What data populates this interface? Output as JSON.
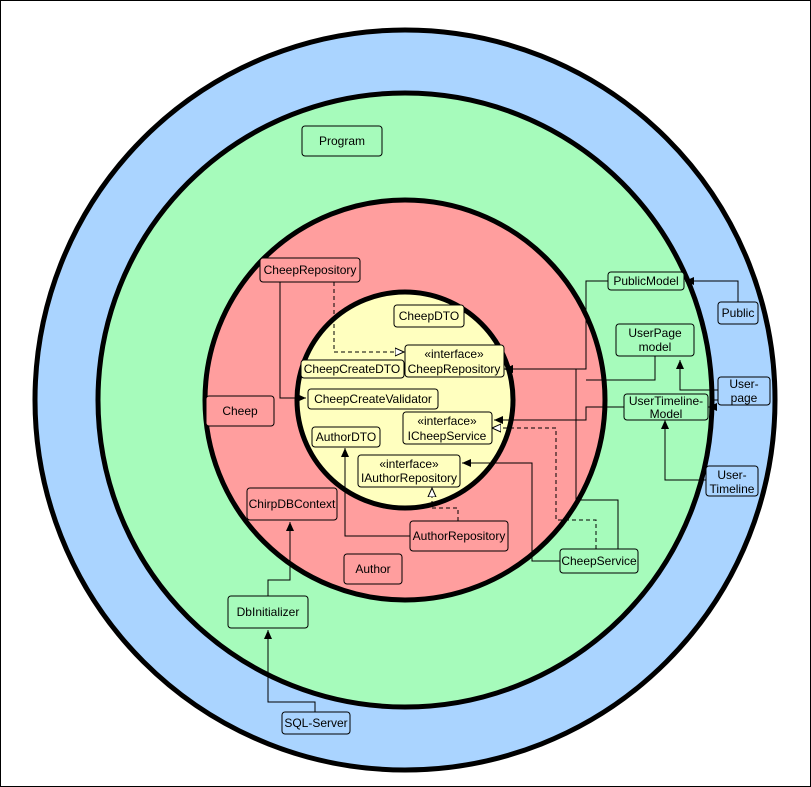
{
  "colors": {
    "outer_ring": "#aad4ff",
    "middle_ring": "#a6fbbb",
    "inner_ring": "#ff9e9e",
    "core": "#ffffbf",
    "stroke": "#000000"
  },
  "boxes": {
    "program": "Program",
    "cheep_repository": "CheepRepository",
    "cheep_dto": "CheepDTO",
    "icheep_repository_stereotype": "«interface»",
    "icheep_repository_name": "CheepRepository",
    "cheep_create_dto": "CheepCreateDTO",
    "cheep_create_validator": "CheepCreateValidator",
    "cheep": "Cheep",
    "author_dto": "AuthorDTO",
    "icheep_service_stereotype": "«interface»",
    "icheep_service_name": "ICheepService",
    "iauthor_repository_stereotype": "«interface»",
    "iauthor_repository_name": "IAuthorRepository",
    "chirp_db_context": "ChirpDBContext",
    "author_repository": "AuthorRepository",
    "author": "Author",
    "cheep_service": "CheepService",
    "db_initializer": "DbInitializer",
    "sql_server": "SQL-Server",
    "public_model": "PublicModel",
    "user_page_model_line1": "UserPage",
    "user_page_model_line2": "model",
    "user_timeline_model_line1": "UserTimeline-",
    "user_timeline_model_line2": "Model",
    "public": "Public",
    "user_page_line1": "User-",
    "user_page_line2": "page",
    "user_timeline_line1": "User-",
    "user_timeline_line2": "Timeline"
  }
}
